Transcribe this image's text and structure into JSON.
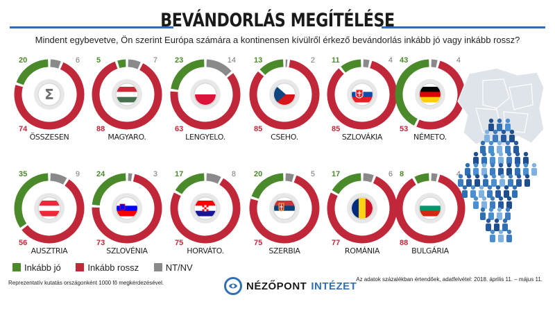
{
  "title": "BEVÁNDORLÁS MEGÍTÉLÉSE",
  "question": "Mindent egybevetve, Ön szerint Európa számára a kontinensen kívülről érkező bevándorlás inkább jó vagy inkább rossz?",
  "colors": {
    "good": "#4a8a2a",
    "bad": "#c0283a",
    "na": "#8a8a8a",
    "accent": "#2f6fb3"
  },
  "legend": {
    "good": "Inkább jó",
    "bad": "Inkább rossz",
    "na": "NT/NV"
  },
  "note_left": "Reprezentatív kutatás országonként 1000 fő megkérdezésével.",
  "note_right": "Az adatok százalékban értendőek, adatfelvétel: 2018. április 11. – május 11.",
  "logo": {
    "part1": "NÉZŐPONT",
    "part2": "INTÉZET"
  },
  "chart_data": {
    "type": "pie",
    "series_names": [
      "Inkább jó",
      "Inkább rossz",
      "NT/NV"
    ],
    "items": [
      {
        "label": "ÖSSZESEN",
        "good": 20,
        "bad": 74,
        "na": 6,
        "icon": "sigma"
      },
      {
        "label": "MAGYARO.",
        "good": 5,
        "bad": 88,
        "na": 7,
        "icon": "hungary-flag"
      },
      {
        "label": "LENGYELO.",
        "good": 23,
        "bad": 63,
        "na": 14,
        "icon": "poland-flag"
      },
      {
        "label": "CSEHO.",
        "good": 13,
        "bad": 85,
        "na": 2,
        "icon": "czech-flag"
      },
      {
        "label": "SZLOVÁKIA",
        "good": 11,
        "bad": 85,
        "na": 4,
        "icon": "slovakia-flag"
      },
      {
        "label": "NÉMETO.",
        "good": 43,
        "bad": 53,
        "na": 4,
        "icon": "germany-flag"
      },
      {
        "label": "AUSZTRIA",
        "good": 35,
        "bad": 56,
        "na": 9,
        "icon": "austria-flag"
      },
      {
        "label": "SZLOVÉNIA",
        "good": 24,
        "bad": 73,
        "na": 3,
        "icon": "slovenia-flag"
      },
      {
        "label": "HORVÁTO.",
        "good": 17,
        "bad": 75,
        "na": 8,
        "icon": "croatia-flag"
      },
      {
        "label": "SZERBIA",
        "good": 20,
        "bad": 75,
        "na": 5,
        "icon": "serbia-flag"
      },
      {
        "label": "ROMÁNIA",
        "good": 17,
        "bad": 77,
        "na": 6,
        "icon": "romania-flag"
      },
      {
        "label": "BULGÁRIA",
        "good": 8,
        "bad": 88,
        "na": 4,
        "icon": "bulgaria-flag"
      }
    ]
  }
}
